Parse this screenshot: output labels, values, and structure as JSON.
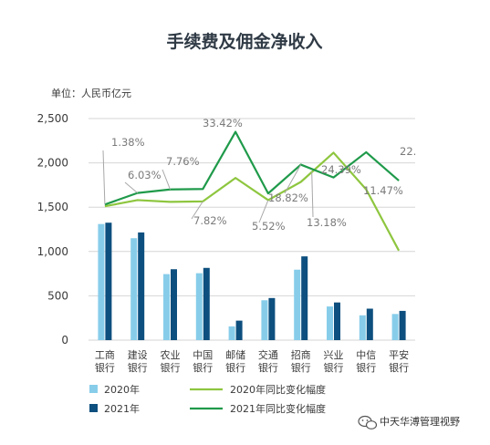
{
  "chart_data": {
    "type": "bar",
    "title": "手续费及佣金净收入",
    "unit_label": "单位：人民币亿元",
    "categories": [
      [
        "工商",
        "银行"
      ],
      [
        "建设",
        "银行"
      ],
      [
        "农业",
        "银行"
      ],
      [
        "中国",
        "银行"
      ],
      [
        "邮储",
        "银行"
      ],
      [
        "交通",
        "银行"
      ],
      [
        "招商",
        "银行"
      ],
      [
        "兴业",
        "银行"
      ],
      [
        "中信",
        "银行"
      ],
      [
        "平安",
        "银行"
      ]
    ],
    "ylim": [
      0,
      2500
    ],
    "yticks": [
      {
        "value": 0,
        "label": "0"
      },
      {
        "value": 500,
        "label": "500"
      },
      {
        "value": 1000,
        "label": "1,000"
      },
      {
        "value": 1500,
        "label": "1,500"
      },
      {
        "value": 2000,
        "label": "2,000"
      },
      {
        "value": 2500,
        "label": "2,500"
      }
    ],
    "grid": true,
    "series": [
      {
        "name": "2020年",
        "kind": "bar",
        "color": "#87cdea",
        "values": [
          1310,
          1150,
          745,
          755,
          155,
          450,
          795,
          380,
          280,
          295
        ]
      },
      {
        "name": "2021年",
        "kind": "bar",
        "color": "#0d4f7e",
        "values": [
          1325,
          1215,
          800,
          815,
          220,
          475,
          945,
          425,
          355,
          330
        ]
      },
      {
        "name": "2020年同比变化幅度",
        "kind": "line",
        "color": "#8ec63f",
        "values": [
          1510,
          1580,
          1560,
          1565,
          1830,
          1580,
          1785,
          2115,
          1700,
          1010
        ]
      },
      {
        "name": "2021年同比变化幅度",
        "kind": "line",
        "color": "#1f9a4a",
        "values": [
          1530,
          1660,
          1700,
          1705,
          2350,
          1655,
          1980,
          1835,
          2120,
          1800
        ]
      }
    ],
    "annotations": [
      {
        "text": "1.38%",
        "category_index": 0
      },
      {
        "text": "6.03%",
        "category_index": 1
      },
      {
        "text": "7.76%",
        "category_index": 2
      },
      {
        "text": "33.42%",
        "category_index": 4
      },
      {
        "text": "7.82%",
        "category_index": 3
      },
      {
        "text": "5.52%",
        "category_index": 5
      },
      {
        "text": "18.82%",
        "category_index": 6
      },
      {
        "text": "13.18%",
        "category_index": 7
      },
      {
        "text": "24.39%",
        "category_index": 8
      },
      {
        "text": "11.47%",
        "category_index": 9
      },
      {
        "text": "22.",
        "category_index": 9
      }
    ],
    "legend_position": "bottom"
  },
  "watermark": {
    "text": "中天华溥管理视野",
    "icon": "wechat-icon"
  }
}
